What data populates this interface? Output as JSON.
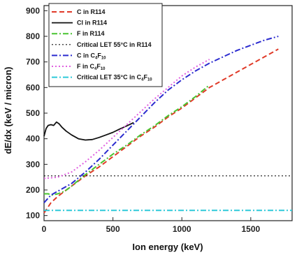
{
  "chart_data": {
    "type": "line",
    "title": "",
    "xlabel": "Ion energy (keV)",
    "ylabel": "dE/dx (keV / micron)",
    "xlim": [
      0,
      1800
    ],
    "ylim": [
      80,
      920
    ],
    "xticks": [
      0,
      500,
      1000,
      1500
    ],
    "yticks": [
      100,
      200,
      300,
      400,
      500,
      600,
      700,
      800,
      900
    ],
    "grid": false,
    "legend_position": "top-left",
    "series": [
      {
        "name": "C in R114",
        "color": "#e03a28",
        "style": "dash",
        "x": [
          0,
          50,
          100,
          200,
          300,
          400,
          500,
          600,
          700,
          800,
          900,
          1000,
          1100,
          1200,
          1300,
          1400,
          1500,
          1600,
          1700
        ],
        "y": [
          110,
          150,
          175,
          215,
          255,
          290,
          330,
          370,
          410,
          445,
          485,
          520,
          560,
          600,
          630,
          660,
          690,
          720,
          750
        ]
      },
      {
        "name": "Cl in R114",
        "color": "#111111",
        "style": "solid",
        "x": [
          0,
          15,
          30,
          50,
          70,
          90,
          110,
          130,
          160,
          200,
          250,
          300,
          350,
          400,
          450,
          500,
          550,
          600,
          650
        ],
        "y": [
          410,
          440,
          452,
          455,
          452,
          465,
          458,
          445,
          430,
          415,
          400,
          395,
          397,
          405,
          415,
          425,
          438,
          450,
          463
        ]
      },
      {
        "name": "F in R114",
        "color": "#49c430",
        "style": "dashdot",
        "x": [
          0,
          30,
          60,
          100,
          150,
          200,
          300,
          400,
          500,
          600,
          700,
          800,
          900,
          1000,
          1100,
          1200
        ],
        "y": [
          185,
          185,
          180,
          185,
          195,
          215,
          260,
          300,
          340,
          375,
          415,
          450,
          490,
          525,
          565,
          610
        ]
      },
      {
        "name": "Critical LET 55°C in R114",
        "color": "#111111",
        "style": "dot",
        "x": [
          0,
          1800
        ],
        "y": [
          255,
          255
        ]
      },
      {
        "name": "C in C4F10",
        "color": "#2b2bcf",
        "style": "dashdot",
        "x": [
          0,
          50,
          100,
          200,
          300,
          400,
          500,
          600,
          700,
          800,
          900,
          1000,
          1100,
          1200,
          1300,
          1400,
          1500,
          1600,
          1700
        ],
        "y": [
          150,
          180,
          195,
          225,
          270,
          320,
          375,
          430,
          485,
          540,
          590,
          630,
          665,
          695,
          720,
          745,
          765,
          785,
          800
        ]
      },
      {
        "name": "F in C4F10",
        "color": "#e060e0",
        "style": "dot",
        "x": [
          0,
          100,
          200,
          300,
          400,
          500,
          600,
          700,
          800,
          900,
          1000,
          1100,
          1200
        ],
        "y": [
          245,
          250,
          270,
          310,
          355,
          405,
          455,
          505,
          555,
          600,
          645,
          680,
          710
        ]
      },
      {
        "name": "Critical LET 35°C in C4F10",
        "color": "#2ec9d9",
        "style": "dashdot",
        "x": [
          0,
          1800
        ],
        "y": [
          120,
          120
        ]
      }
    ],
    "legend": [
      {
        "prefix": "C in R114",
        "sub": "",
        "suffix": ""
      },
      {
        "prefix": "Cl in R114",
        "sub": "",
        "suffix": ""
      },
      {
        "prefix": "F in R114",
        "sub": "",
        "suffix": ""
      },
      {
        "prefix": "Critical LET 55°C in R114",
        "sub": "",
        "suffix": ""
      },
      {
        "prefix": "C in C",
        "sub": "4",
        "mid": "F",
        "sub2": "10",
        "suffix": ""
      },
      {
        "prefix": "F in C",
        "sub": "4",
        "mid": "F",
        "sub2": "10",
        "suffix": ""
      },
      {
        "prefix": "Critical LET 35°C in C",
        "sub": "4",
        "mid": "F",
        "sub2": "10",
        "suffix": ""
      }
    ]
  }
}
